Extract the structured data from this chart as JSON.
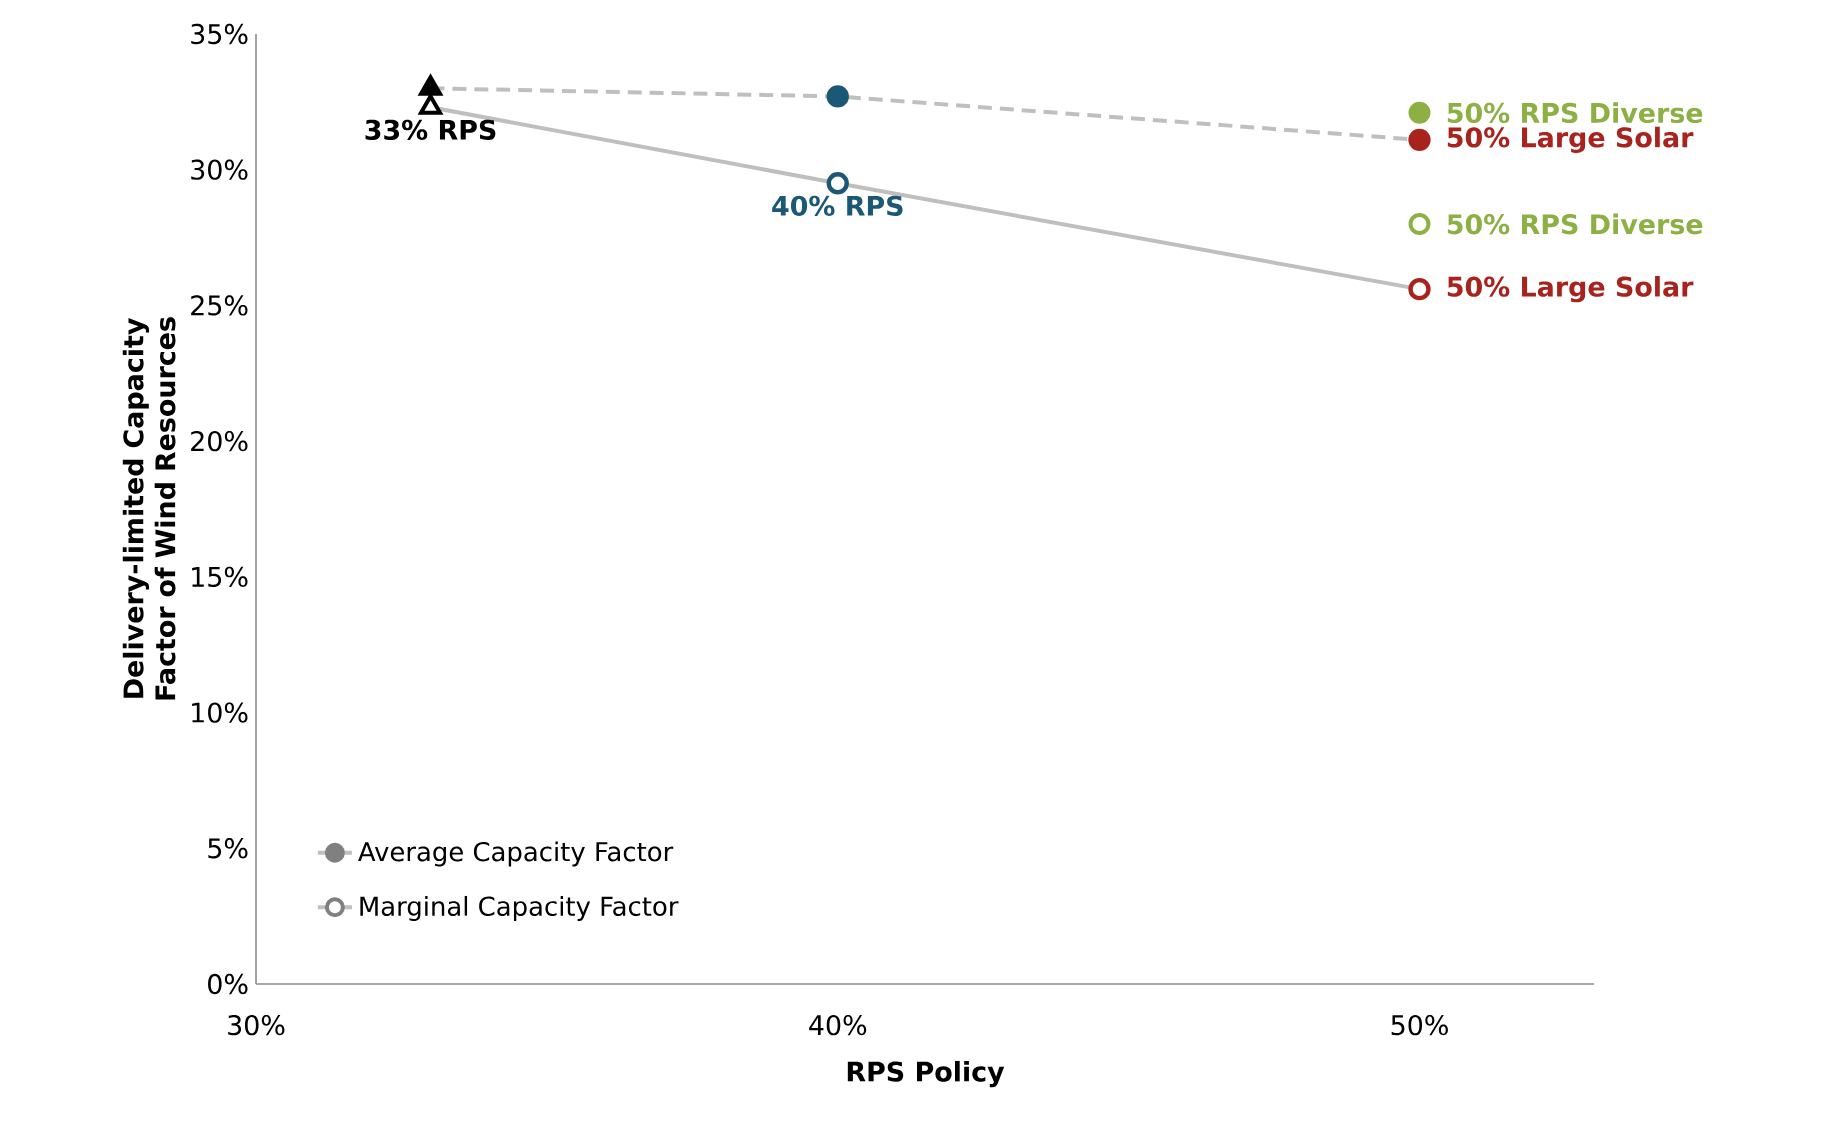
{
  "chart_data": {
    "type": "line",
    "xlabel": "RPS Policy",
    "ylabel": "Delivery-limited Capacity Factor of Wind Resources",
    "xlim": [
      30,
      53
    ],
    "ylim": [
      0,
      35
    ],
    "xticks": [
      {
        "value": 30,
        "label": "30%"
      },
      {
        "value": 40,
        "label": "40%"
      },
      {
        "value": 50,
        "label": "50%"
      }
    ],
    "yticks": [
      {
        "value": 0,
        "label": "0%"
      },
      {
        "value": 5,
        "label": "5%"
      },
      {
        "value": 10,
        "label": "10%"
      },
      {
        "value": 15,
        "label": "15%"
      },
      {
        "value": 20,
        "label": "20%"
      },
      {
        "value": 25,
        "label": "25%"
      },
      {
        "value": 30,
        "label": "30%"
      },
      {
        "value": 35,
        "label": "35%"
      }
    ],
    "legend": "bottom left",
    "marker": "circle",
    "series": [
      {
        "name": "Average Capacity Factor",
        "type": "line",
        "line_style": "dashed",
        "color": "#bfbfbf",
        "x": [
          33,
          40,
          50
        ],
        "values": [
          33.0,
          32.7,
          31.1
        ],
        "colors": [
          null,
          "#1b5876",
          "#a8231d"
        ]
      },
      {
        "name": "Marginal Capacity Factor",
        "type": "line",
        "line_style": "solid",
        "color": "#bfbfbf",
        "x": [
          33,
          40,
          50
        ],
        "values": [
          32.3,
          29.5,
          25.6
        ],
        "colors": [
          null,
          "#1b5876",
          "#a8231d"
        ]
      },
      {
        "type": "scatter",
        "marker": "triangle",
        "line_style": "dashed",
        "color": "#000000",
        "x": [
          33
        ],
        "values": [
          33.0
        ]
      },
      {
        "type": "scatter",
        "marker": "triangle",
        "line_style": "solid",
        "color": "#000000",
        "x": [
          33
        ],
        "values": [
          32.3
        ]
      },
      {
        "type": "scatter",
        "marker": "circle",
        "line_style": "dashed",
        "color": "#8cb043",
        "x": [
          50
        ],
        "values": [
          32.1
        ]
      },
      {
        "type": "scatter",
        "marker": "circle",
        "line_style": "solid",
        "color": "#8cb043",
        "x": [
          50
        ],
        "values": [
          28.0
        ]
      }
    ],
    "annotations": [
      {
        "text": "33% RPS",
        "x": 33,
        "y": 32.3
      },
      {
        "text": "40% RPS",
        "x": 40,
        "y": 29.5
      },
      {
        "text": "50% RPS Diverse",
        "x": 50,
        "y": 32.1
      },
      {
        "text": "50% Large Solar",
        "x": 50,
        "y": 31.1
      },
      {
        "text": "50% RPS Diverse",
        "x": 50,
        "y": 28.0
      },
      {
        "text": "50% Large Solar",
        "x": 50,
        "y": 25.6
      }
    ]
  }
}
